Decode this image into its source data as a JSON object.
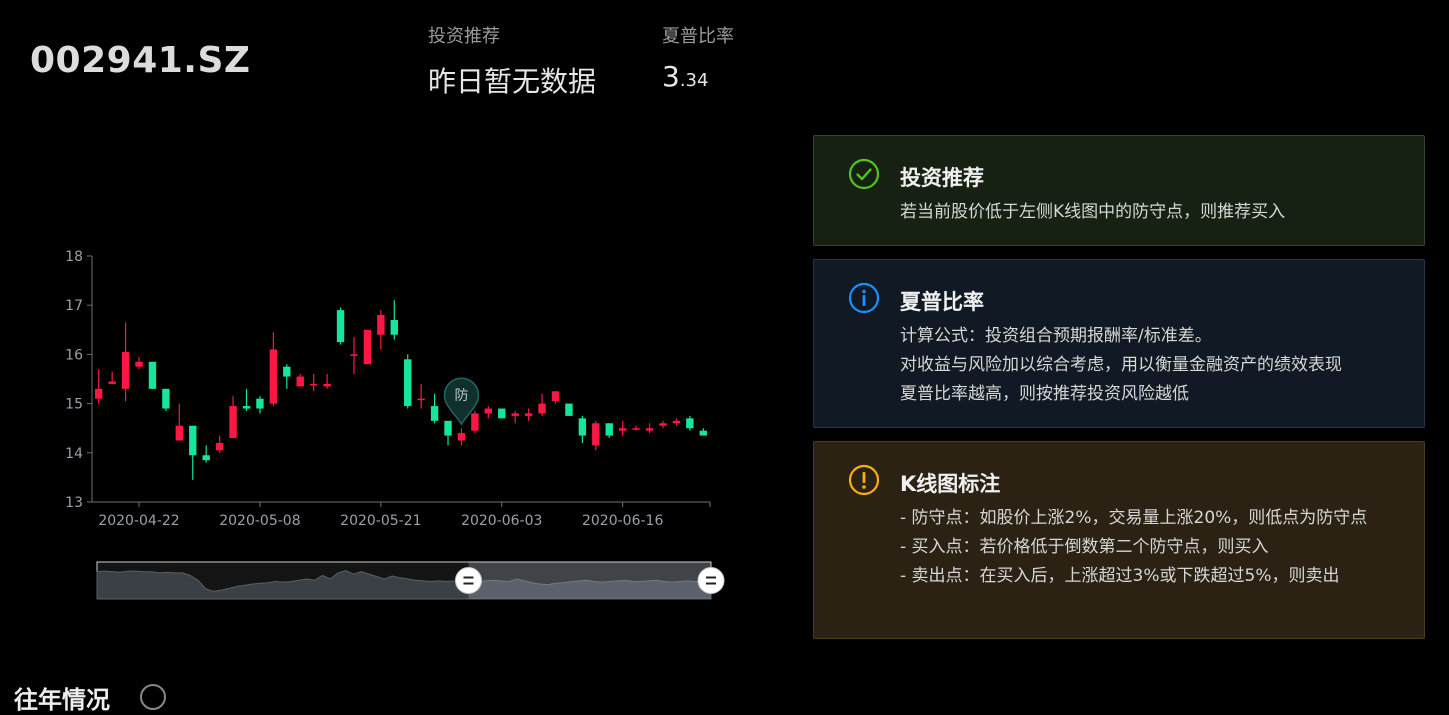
{
  "header": {
    "ticker": "002941.SZ",
    "recommend_label": "投资推荐",
    "recommend_value": "昨日暂无数据",
    "sharpe_label": "夏普比率",
    "sharpe_int": "3",
    "sharpe_dec": ".34"
  },
  "cards": {
    "recommend": {
      "title": "投资推荐",
      "lines": [
        "若当前股价低于左侧K线图中的防守点，则推荐买入"
      ],
      "icon": "check-circle-icon",
      "color": "#52c41a"
    },
    "sharpe": {
      "title": "夏普比率",
      "lines": [
        "计算公式：投资组合预期报酬率/标准差。",
        "对收益与风险加以综合考虑，用以衡量金融资产的绩效表现",
        "夏普比率越高，则按推荐投资风险越低"
      ],
      "icon": "info-circle-icon",
      "color": "#1890ff"
    },
    "kline": {
      "title": "K线图标注",
      "lines": [
        "- 防守点：如股价上涨2%，交易量上涨20%，则低点为防守点",
        "- 买入点：若价格低于倒数第二个防守点，则买入",
        "- 卖出点：在买入后，上涨超过3%或下跌超过5%，则卖出"
      ],
      "icon": "exclamation-circle-icon",
      "color": "#faad14"
    }
  },
  "bottom": {
    "title": "往年情况"
  },
  "chart_data": {
    "type": "candlestick",
    "title": "",
    "ylim": [
      13,
      18
    ],
    "yticks": [
      13,
      14,
      15,
      16,
      17,
      18
    ],
    "xtick_labels": [
      "2020-04-22",
      "2020-05-08",
      "2020-05-21",
      "2020-06-03",
      "2020-06-16"
    ],
    "xtick_index": [
      3,
      12,
      21,
      30,
      39
    ],
    "up_color": "#ff1744",
    "down_color": "#14e69b",
    "candles": [
      {
        "o": 15.1,
        "c": 15.3,
        "h": 15.7,
        "l": 15.0
      },
      {
        "o": 15.4,
        "c": 15.45,
        "h": 15.65,
        "l": 15.4
      },
      {
        "o": 15.3,
        "c": 16.05,
        "h": 16.65,
        "l": 15.05
      },
      {
        "o": 15.75,
        "c": 15.85,
        "h": 15.95,
        "l": 15.7
      },
      {
        "o": 15.85,
        "c": 15.3,
        "h": 15.85,
        "l": 15.3
      },
      {
        "o": 15.3,
        "c": 14.9,
        "h": 15.3,
        "l": 14.85
      },
      {
        "o": 14.25,
        "c": 14.55,
        "h": 15.0,
        "l": 14.25
      },
      {
        "o": 14.55,
        "c": 13.95,
        "h": 14.55,
        "l": 13.45
      },
      {
        "o": 13.95,
        "c": 13.85,
        "h": 14.15,
        "l": 13.8
      },
      {
        "o": 14.05,
        "c": 14.2,
        "h": 14.35,
        "l": 14.0
      },
      {
        "o": 14.3,
        "c": 14.95,
        "h": 15.15,
        "l": 14.3
      },
      {
        "o": 14.95,
        "c": 14.9,
        "h": 15.3,
        "l": 14.85
      },
      {
        "o": 15.1,
        "c": 14.9,
        "h": 15.15,
        "l": 14.8
      },
      {
        "o": 15.0,
        "c": 16.1,
        "h": 16.45,
        "l": 14.95
      },
      {
        "o": 15.75,
        "c": 15.55,
        "h": 15.8,
        "l": 15.3
      },
      {
        "o": 15.35,
        "c": 15.55,
        "h": 15.6,
        "l": 15.35
      },
      {
        "o": 15.4,
        "c": 15.4,
        "h": 15.6,
        "l": 15.25
      },
      {
        "o": 15.35,
        "c": 15.4,
        "h": 15.6,
        "l": 15.3
      },
      {
        "o": 16.9,
        "c": 16.25,
        "h": 16.95,
        "l": 16.2
      },
      {
        "o": 16.0,
        "c": 16.0,
        "h": 16.35,
        "l": 15.6
      },
      {
        "o": 15.8,
        "c": 16.5,
        "h": 16.5,
        "l": 15.8
      },
      {
        "o": 16.4,
        "c": 16.8,
        "h": 16.9,
        "l": 16.1
      },
      {
        "o": 16.7,
        "c": 16.4,
        "h": 17.1,
        "l": 16.3
      },
      {
        "o": 15.9,
        "c": 14.95,
        "h": 16.0,
        "l": 14.9
      },
      {
        "o": 15.1,
        "c": 15.1,
        "h": 15.4,
        "l": 14.9
      },
      {
        "o": 14.95,
        "c": 14.65,
        "h": 15.2,
        "l": 14.6
      },
      {
        "o": 14.65,
        "c": 14.35,
        "h": 14.65,
        "l": 14.15
      },
      {
        "o": 14.25,
        "c": 14.4,
        "h": 14.5,
        "l": 14.15
      },
      {
        "o": 14.45,
        "c": 14.8,
        "h": 14.85,
        "l": 14.4
      },
      {
        "o": 14.8,
        "c": 14.9,
        "h": 14.95,
        "l": 14.7
      },
      {
        "o": 14.9,
        "c": 14.7,
        "h": 14.9,
        "l": 14.7
      },
      {
        "o": 14.75,
        "c": 14.8,
        "h": 14.85,
        "l": 14.6
      },
      {
        "o": 14.75,
        "c": 14.8,
        "h": 14.9,
        "l": 14.65
      },
      {
        "o": 14.8,
        "c": 15.0,
        "h": 15.2,
        "l": 14.75
      },
      {
        "o": 15.05,
        "c": 15.25,
        "h": 15.25,
        "l": 15.0
      },
      {
        "o": 15.0,
        "c": 14.75,
        "h": 15.0,
        "l": 14.75
      },
      {
        "o": 14.7,
        "c": 14.35,
        "h": 14.75,
        "l": 14.2
      },
      {
        "o": 14.15,
        "c": 14.6,
        "h": 14.65,
        "l": 14.05
      },
      {
        "o": 14.6,
        "c": 14.35,
        "h": 14.6,
        "l": 14.3
      },
      {
        "o": 14.45,
        "c": 14.5,
        "h": 14.65,
        "l": 14.35
      },
      {
        "o": 14.5,
        "c": 14.5,
        "h": 14.55,
        "l": 14.45
      },
      {
        "o": 14.45,
        "c": 14.5,
        "h": 14.6,
        "l": 14.4
      },
      {
        "o": 14.55,
        "c": 14.6,
        "h": 14.65,
        "l": 14.5
      },
      {
        "o": 14.6,
        "c": 14.65,
        "h": 14.7,
        "l": 14.55
      },
      {
        "o": 14.7,
        "c": 14.5,
        "h": 14.75,
        "l": 14.45
      },
      {
        "o": 14.45,
        "c": 14.35,
        "h": 14.5,
        "l": 14.35
      }
    ],
    "markers": [
      {
        "index": 27,
        "value": 14.5,
        "label": "防"
      }
    ],
    "overview": {
      "values": [
        15.3,
        15.35,
        15.3,
        15.25,
        15.35,
        15.35,
        15.3,
        15.3,
        15.2,
        15.25,
        15.2,
        15.2,
        15.0,
        14.6,
        13.9,
        13.7,
        13.8,
        13.95,
        14.1,
        14.2,
        14.3,
        14.35,
        14.4,
        14.5,
        14.45,
        14.5,
        14.6,
        14.7,
        14.6,
        15.0,
        14.7,
        15.2,
        15.4,
        15.1,
        15.3,
        15.1,
        14.9,
        14.7,
        14.95,
        14.8,
        14.7,
        14.6,
        14.55,
        14.5,
        14.55,
        14.5,
        14.55,
        14.6,
        14.55,
        14.5,
        14.55,
        14.6,
        14.55,
        14.5,
        14.7,
        14.55,
        14.4,
        14.3,
        14.25,
        14.35,
        14.4,
        14.5,
        14.55,
        14.6,
        14.5,
        14.45,
        14.5,
        14.55,
        14.6,
        14.5,
        14.5,
        14.55,
        14.6,
        14.5,
        14.45,
        14.5,
        14.55,
        14.5,
        14.5,
        14.45
      ],
      "range": [
        0.605,
        1.0
      ]
    }
  }
}
